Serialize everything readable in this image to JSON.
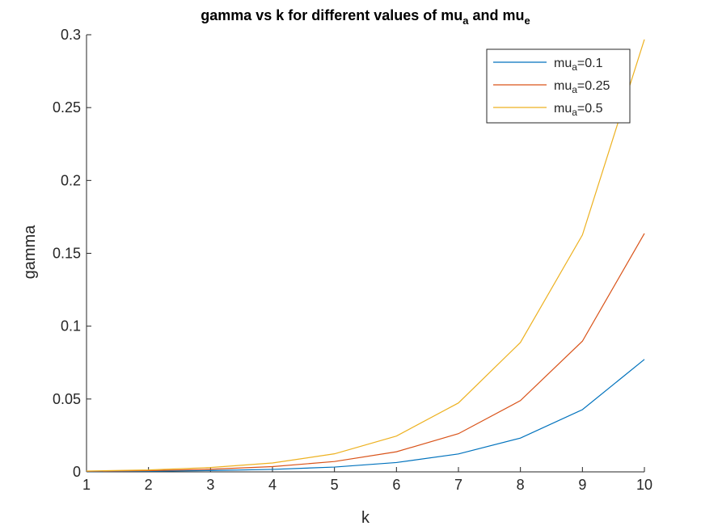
{
  "chart_data": {
    "type": "line",
    "title": {
      "prefix": "gamma  vs  k  for  different  values  of  mu",
      "sub1": "a",
      "middle": "  and  mu",
      "sub2": "e"
    },
    "xlabel": "k",
    "ylabel": "gamma",
    "xlim": [
      1,
      10
    ],
    "ylim": [
      0,
      0.3
    ],
    "xticks": [
      1,
      2,
      3,
      4,
      5,
      6,
      7,
      8,
      9,
      10
    ],
    "yticks": [
      0,
      0.05,
      0.1,
      0.15,
      0.2,
      0.25,
      0.3
    ],
    "grid": false,
    "legend_position": "top-right",
    "x": [
      1,
      2,
      3,
      4,
      5,
      6,
      7,
      8,
      9,
      10
    ],
    "series": [
      {
        "name_base": "mu",
        "name_sub": "a",
        "name_rest": "=0.1",
        "color": "#0072BD",
        "values": [
          0.0002,
          0.0004,
          0.0009,
          0.0017,
          0.0033,
          0.0064,
          0.0123,
          0.0232,
          0.0427,
          0.0772
        ]
      },
      {
        "name_base": "mu",
        "name_sub": "a",
        "name_rest": "=0.25",
        "color": "#D95319",
        "values": [
          0.0004,
          0.0008,
          0.0018,
          0.0036,
          0.0071,
          0.0138,
          0.0262,
          0.0489,
          0.0897,
          0.1636
        ]
      },
      {
        "name_base": "mu",
        "name_sub": "a",
        "name_rest": "=0.5",
        "color": "#EDB120",
        "values": [
          0.0006,
          0.0013,
          0.003,
          0.0061,
          0.0124,
          0.0246,
          0.0473,
          0.0888,
          0.1626,
          0.2968
        ]
      }
    ]
  }
}
